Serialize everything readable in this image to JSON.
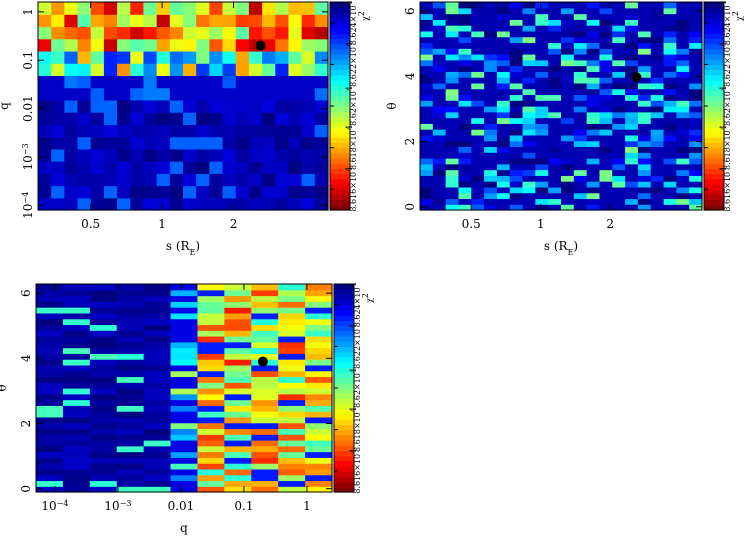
{
  "chart_data": [
    {
      "type": "heatmap",
      "xlabel": "s (R",
      "xlabel_sub": "E",
      "xlabel_close": ")",
      "ylabel": "q",
      "x_scale": "log",
      "y_scale": "log",
      "xlim": [
        0.3,
        5.0
      ],
      "ylim": [
        8e-05,
        1.6
      ],
      "x_ticks": [
        {
          "value": 0.5,
          "label": "0.5"
        },
        {
          "value": 1,
          "label": "1"
        },
        {
          "value": 2,
          "label": "2"
        }
      ],
      "y_ticks": [
        {
          "value": 0.0001,
          "label": "10",
          "sup": "−4"
        },
        {
          "value": 0.001,
          "label": "10",
          "sup": "−3"
        },
        {
          "value": 0.01,
          "label": "0.01"
        },
        {
          "value": 0.1,
          "label": "0.1"
        },
        {
          "value": 1,
          "label": "1"
        }
      ],
      "grid": {
        "nx": 22,
        "ny": 17,
        "seed": 11,
        "mode": "q"
      },
      "best_fit": {
        "x": 2.6,
        "y": 0.2
      },
      "colorbar": {
        "label": "χ",
        "label_sup": "2",
        "ticks": [
          "8.616×10",
          "8.618×10",
          "8.62×10",
          "8.622×10",
          "8.624×10"
        ],
        "tick_sup": "4",
        "scale": "red (low) to dark blue (high)"
      }
    },
    {
      "type": "heatmap",
      "xlabel": "s (R",
      "xlabel_sub": "E",
      "xlabel_close": ")",
      "ylabel": "θ",
      "x_scale": "log",
      "y_scale": "linear",
      "xlim": [
        0.3,
        5.0
      ],
      "ylim": [
        -0.1,
        6.28
      ],
      "x_ticks": [
        {
          "value": 0.5,
          "label": "0.5"
        },
        {
          "value": 1,
          "label": "1"
        },
        {
          "value": 2,
          "label": "2"
        }
      ],
      "y_ticks": [
        {
          "value": 0,
          "label": "0"
        },
        {
          "value": 2,
          "label": "2"
        },
        {
          "value": 4,
          "label": "4"
        },
        {
          "value": 6,
          "label": "6"
        }
      ],
      "grid": {
        "nx": 22,
        "ny": 36,
        "seed": 23,
        "mode": "s_theta"
      },
      "best_fit": {
        "x": 2.6,
        "y": 3.97
      },
      "colorbar": {
        "label": "χ",
        "label_sup": "2",
        "ticks": [
          "8.616×10",
          "8.618×10",
          "8.62×10",
          "8.622×10",
          "8.624×10"
        ],
        "tick_sup": "4",
        "scale": "red (low) to dark blue (high)"
      }
    },
    {
      "type": "heatmap",
      "xlabel": "q",
      "ylabel": "θ",
      "x_scale": "log",
      "y_scale": "linear",
      "xlim": [
        5e-05,
        2.5
      ],
      "ylim": [
        -0.1,
        6.28
      ],
      "x_ticks": [
        {
          "value": 0.0001,
          "label": "10",
          "sup": "−4"
        },
        {
          "value": 0.001,
          "label": "10",
          "sup": "−3"
        },
        {
          "value": 0.01,
          "label": "0.01"
        },
        {
          "value": 0.1,
          "label": "0.1"
        },
        {
          "value": 1,
          "label": "1"
        }
      ],
      "y_ticks": [
        {
          "value": 0,
          "label": "0"
        },
        {
          "value": 2,
          "label": "2"
        },
        {
          "value": 4,
          "label": "4"
        },
        {
          "value": 6,
          "label": "6"
        }
      ],
      "grid": {
        "nx": 11,
        "ny": 36,
        "seed": 37,
        "mode": "q_theta"
      },
      "best_fit": {
        "x": 0.2,
        "y": 3.9
      },
      "colorbar": {
        "label": "χ",
        "label_sup": "2",
        "ticks": [
          "8.616×10",
          "8.618×10",
          "8.62×10",
          "8.622×10",
          "8.624×10"
        ],
        "tick_sup": "4",
        "scale": "red (low) to dark blue (high)"
      }
    }
  ]
}
